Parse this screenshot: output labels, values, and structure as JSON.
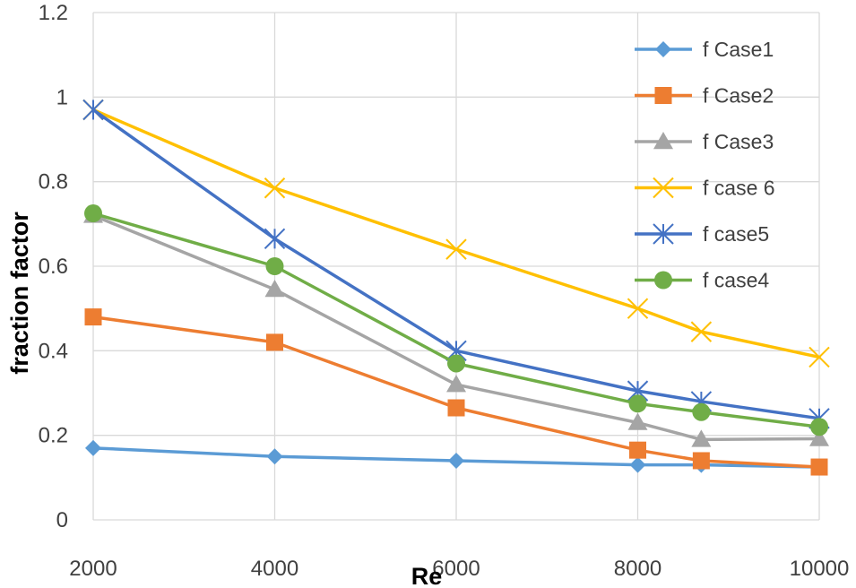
{
  "chart_data": {
    "type": "line",
    "xlabel": "Re",
    "ylabel": "fraction factor",
    "xlim": [
      2000,
      10000
    ],
    "ylim": [
      0,
      1.2
    ],
    "x_ticks": [
      "2000",
      "4000",
      "6000",
      "8000",
      "10000"
    ],
    "x_tick_values": [
      2000,
      4000,
      6000,
      8000,
      10000
    ],
    "y_ticks": [
      "0",
      "0.2",
      "0.4",
      "0.6",
      "0.8",
      "1",
      "1.2"
    ],
    "y_tick_values": [
      0,
      0.2,
      0.4,
      0.6,
      0.8,
      1,
      1.2
    ],
    "grid": true,
    "legend_position": "top-right",
    "series": [
      {
        "name": "f Case1",
        "color": "#5B9BD5",
        "marker": "diamond",
        "x": [
          2000,
          4000,
          6000,
          8000,
          8700,
          10000
        ],
        "y": [
          0.17,
          0.15,
          0.14,
          0.13,
          0.13,
          0.125
        ]
      },
      {
        "name": "f Case2",
        "color": "#ED7D31",
        "marker": "square",
        "x": [
          2000,
          4000,
          6000,
          8000,
          8700,
          10000
        ],
        "y": [
          0.48,
          0.42,
          0.265,
          0.165,
          0.14,
          0.125
        ]
      },
      {
        "name": "f Case3",
        "color": "#A5A5A5",
        "marker": "triangle",
        "x": [
          2000,
          4000,
          6000,
          8000,
          8700,
          10000
        ],
        "y": [
          0.72,
          0.545,
          0.32,
          0.23,
          0.19,
          0.192
        ]
      },
      {
        "name": "f case 6",
        "color": "#FFC000",
        "marker": "x",
        "x": [
          2000,
          4000,
          6000,
          8000,
          8700,
          10000
        ],
        "y": [
          0.97,
          0.785,
          0.64,
          0.5,
          0.445,
          0.385
        ]
      },
      {
        "name": "f case5",
        "color": "#4472C4",
        "marker": "asterisk",
        "x": [
          2000,
          4000,
          6000,
          8000,
          8700,
          10000
        ],
        "y": [
          0.97,
          0.665,
          0.4,
          0.305,
          0.28,
          0.24
        ]
      },
      {
        "name": "f case4",
        "color": "#70AD47",
        "marker": "circle",
        "x": [
          2000,
          4000,
          6000,
          8000,
          8700,
          10000
        ],
        "y": [
          0.725,
          0.6,
          0.37,
          0.275,
          0.255,
          0.22
        ]
      }
    ]
  }
}
